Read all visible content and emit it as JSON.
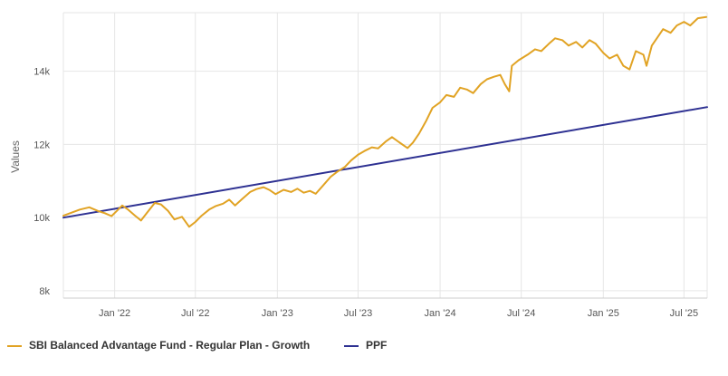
{
  "chart_data": {
    "type": "line",
    "title": "",
    "xlabel": "",
    "ylabel": "Values",
    "ylim": [
      7800,
      15600
    ],
    "yticks": [
      {
        "value": 8000,
        "label": "8k"
      },
      {
        "value": 10000,
        "label": "10k"
      },
      {
        "value": 12000,
        "label": "12k"
      },
      {
        "value": 14000,
        "label": "14k"
      }
    ],
    "xlim": [
      "2021-09-08",
      "2025-08-22"
    ],
    "xticks": [
      {
        "date": "2022-01-01",
        "label": "Jan '22"
      },
      {
        "date": "2022-07-01",
        "label": "Jul '22"
      },
      {
        "date": "2023-01-01",
        "label": "Jan '23"
      },
      {
        "date": "2023-07-01",
        "label": "Jul '23"
      },
      {
        "date": "2024-01-01",
        "label": "Jan '24"
      },
      {
        "date": "2024-07-01",
        "label": "Jul '24"
      },
      {
        "date": "2025-01-01",
        "label": "Jan '25"
      },
      {
        "date": "2025-07-01",
        "label": "Jul '25"
      }
    ],
    "series": [
      {
        "name": "SBI Balanced Advantage Fund - Regular Plan - Growth",
        "color": "#E1A324",
        "points": [
          [
            "2021-09-08",
            10050
          ],
          [
            "2021-09-25",
            10130
          ],
          [
            "2021-10-15",
            10220
          ],
          [
            "2021-11-05",
            10280
          ],
          [
            "2021-11-25",
            10180
          ],
          [
            "2021-12-10",
            10120
          ],
          [
            "2021-12-25",
            10040
          ],
          [
            "2022-01-08",
            10210
          ],
          [
            "2022-01-18",
            10330
          ],
          [
            "2022-01-30",
            10230
          ],
          [
            "2022-02-15",
            10060
          ],
          [
            "2022-03-01",
            9920
          ],
          [
            "2022-03-15",
            10140
          ],
          [
            "2022-04-01",
            10400
          ],
          [
            "2022-04-15",
            10360
          ],
          [
            "2022-05-01",
            10180
          ],
          [
            "2022-05-15",
            9950
          ],
          [
            "2022-06-01",
            10020
          ],
          [
            "2022-06-17",
            9750
          ],
          [
            "2022-07-01",
            9880
          ],
          [
            "2022-07-15",
            10050
          ],
          [
            "2022-08-01",
            10220
          ],
          [
            "2022-08-15",
            10310
          ],
          [
            "2022-09-01",
            10380
          ],
          [
            "2022-09-15",
            10490
          ],
          [
            "2022-09-28",
            10330
          ],
          [
            "2022-10-15",
            10520
          ],
          [
            "2022-11-01",
            10700
          ],
          [
            "2022-11-15",
            10780
          ],
          [
            "2022-12-01",
            10830
          ],
          [
            "2022-12-15",
            10750
          ],
          [
            "2022-12-28",
            10640
          ],
          [
            "2023-01-15",
            10760
          ],
          [
            "2023-02-01",
            10700
          ],
          [
            "2023-02-15",
            10790
          ],
          [
            "2023-03-01",
            10680
          ],
          [
            "2023-03-15",
            10730
          ],
          [
            "2023-03-28",
            10650
          ],
          [
            "2023-04-15",
            10900
          ],
          [
            "2023-05-01",
            11120
          ],
          [
            "2023-05-15",
            11250
          ],
          [
            "2023-06-01",
            11380
          ],
          [
            "2023-06-15",
            11560
          ],
          [
            "2023-07-01",
            11720
          ],
          [
            "2023-07-15",
            11820
          ],
          [
            "2023-08-01",
            11920
          ],
          [
            "2023-08-15",
            11890
          ],
          [
            "2023-09-01",
            12080
          ],
          [
            "2023-09-15",
            12200
          ],
          [
            "2023-10-01",
            12060
          ],
          [
            "2023-10-20",
            11900
          ],
          [
            "2023-11-01",
            12050
          ],
          [
            "2023-11-15",
            12300
          ],
          [
            "2023-12-01",
            12650
          ],
          [
            "2023-12-15",
            13000
          ],
          [
            "2024-01-01",
            13150
          ],
          [
            "2024-01-15",
            13350
          ],
          [
            "2024-02-01",
            13300
          ],
          [
            "2024-02-15",
            13550
          ],
          [
            "2024-03-01",
            13500
          ],
          [
            "2024-03-15",
            13400
          ],
          [
            "2024-04-01",
            13650
          ],
          [
            "2024-04-15",
            13780
          ],
          [
            "2024-05-01",
            13850
          ],
          [
            "2024-05-15",
            13900
          ],
          [
            "2024-05-25",
            13650
          ],
          [
            "2024-06-04",
            13450
          ],
          [
            "2024-06-10",
            14150
          ],
          [
            "2024-06-25",
            14300
          ],
          [
            "2024-07-15",
            14450
          ],
          [
            "2024-08-01",
            14600
          ],
          [
            "2024-08-15",
            14550
          ],
          [
            "2024-09-01",
            14750
          ],
          [
            "2024-09-15",
            14900
          ],
          [
            "2024-10-01",
            14850
          ],
          [
            "2024-10-15",
            14700
          ],
          [
            "2024-11-01",
            14800
          ],
          [
            "2024-11-15",
            14650
          ],
          [
            "2024-12-01",
            14850
          ],
          [
            "2024-12-15",
            14750
          ],
          [
            "2025-01-01",
            14500
          ],
          [
            "2025-01-15",
            14350
          ],
          [
            "2025-02-01",
            14450
          ],
          [
            "2025-02-15",
            14150
          ],
          [
            "2025-03-01",
            14050
          ],
          [
            "2025-03-15",
            14550
          ],
          [
            "2025-04-01",
            14450
          ],
          [
            "2025-04-08",
            14150
          ],
          [
            "2025-04-20",
            14700
          ],
          [
            "2025-05-01",
            14900
          ],
          [
            "2025-05-15",
            15150
          ],
          [
            "2025-06-01",
            15050
          ],
          [
            "2025-06-15",
            15250
          ],
          [
            "2025-07-01",
            15350
          ],
          [
            "2025-07-15",
            15250
          ],
          [
            "2025-08-01",
            15450
          ],
          [
            "2025-08-20",
            15480
          ]
        ]
      },
      {
        "name": "PPF",
        "color": "#2E3192",
        "points": [
          [
            "2021-09-08",
            10000
          ],
          [
            "2025-08-22",
            13020
          ]
        ]
      }
    ],
    "legend": "bottom-left",
    "grid": true
  }
}
